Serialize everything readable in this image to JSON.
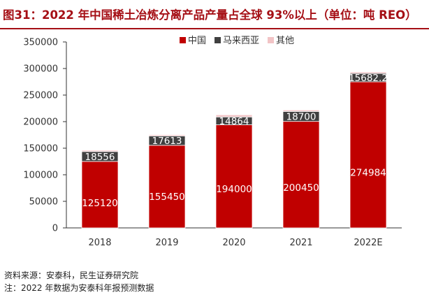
{
  "title": "图31：2022 年中国稀土冶炼分离产品产量占全球 93%以上（单位：吨 REO）",
  "notes": [
    "资料来源：安泰科，民生证券研究院",
    "注：2022 年数据为安泰科年报预测数据"
  ],
  "chart_data": {
    "type": "bar",
    "stacked": true,
    "categories": [
      "2018",
      "2019",
      "2020",
      "2021",
      "2022E"
    ],
    "series": [
      {
        "name": "中国",
        "color": "#c00000",
        "values": [
          125120,
          155450,
          194000,
          200450,
          274984
        ],
        "labels": [
          "125120",
          "155450",
          "194000",
          "200450",
          "274984"
        ]
      },
      {
        "name": "马来西亚",
        "color": "#404040",
        "values": [
          18556,
          17613,
          14864,
          18700,
          15682.2
        ],
        "labels": [
          "18556",
          "17613",
          "14864",
          "18700",
          "15682.2"
        ]
      },
      {
        "name": "其他",
        "color": "#f2c4c6",
        "values": [
          2500,
          2300,
          4000,
          2800,
          2800
        ],
        "labels": [
          "",
          "",
          "",
          "",
          ""
        ]
      }
    ],
    "ylim": [
      0,
      350000
    ],
    "yticks": [
      0,
      50000,
      100000,
      150000,
      200000,
      250000,
      300000,
      350000
    ],
    "grid": false,
    "legend_position": "top-center"
  }
}
